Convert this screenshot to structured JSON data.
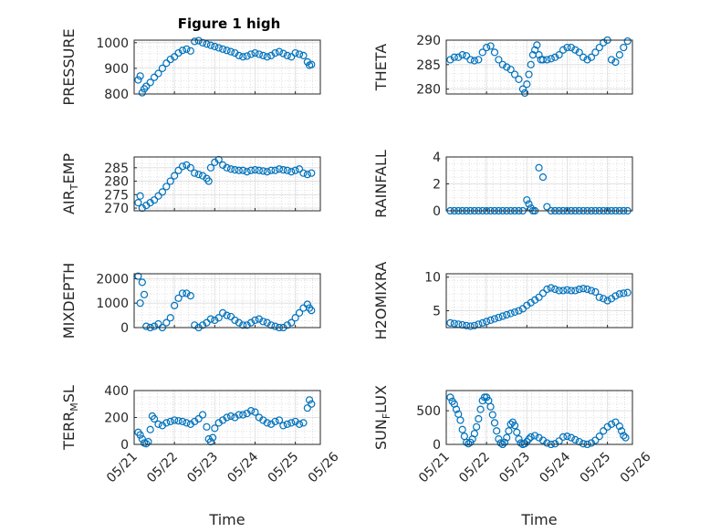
{
  "figure": {
    "title": "Figure 1 high"
  },
  "colors": {
    "marker": "#0072bd",
    "axis": "#262626",
    "grid": "#c8c8c8",
    "bg": "#ffffff"
  },
  "chart_data": [
    {
      "type": "scatter",
      "id": "pressure",
      "ylabel": "PRESSURE",
      "ylabel_sub": "",
      "xlim": [
        0,
        4.62
      ],
      "ylim": [
        800,
        1010
      ],
      "yticks": [
        800,
        900,
        1000
      ],
      "xticks": [
        0,
        1,
        2,
        3,
        4
      ],
      "xticklabels": [
        "05/21",
        "05/22",
        "05/23",
        "05/24",
        "05/25"
      ],
      "grid": true,
      "minor_grid": true,
      "x": [
        0.1,
        0.15,
        0.2,
        0.25,
        0.3,
        0.4,
        0.5,
        0.6,
        0.7,
        0.8,
        0.9,
        1.0,
        1.1,
        1.2,
        1.3,
        1.4,
        1.5,
        1.6,
        1.7,
        1.8,
        1.9,
        2.0,
        2.1,
        2.2,
        2.3,
        2.4,
        2.5,
        2.6,
        2.7,
        2.8,
        2.9,
        3.0,
        3.1,
        3.2,
        3.3,
        3.4,
        3.5,
        3.6,
        3.7,
        3.8,
        3.9,
        4.0,
        4.1,
        4.2,
        4.3,
        4.35,
        4.4
      ],
      "y": [
        855,
        870,
        805,
        820,
        830,
        845,
        865,
        880,
        900,
        920,
        935,
        945,
        960,
        970,
        975,
        968,
        1005,
        1008,
        1000,
        995,
        990,
        985,
        980,
        975,
        970,
        965,
        960,
        950,
        945,
        948,
        955,
        960,
        955,
        950,
        945,
        950,
        960,
        965,
        958,
        950,
        945,
        960,
        955,
        950,
        925,
        912,
        915
      ]
    },
    {
      "type": "scatter",
      "id": "theta",
      "ylabel": "THETA",
      "ylabel_sub": "",
      "xlim": [
        0,
        4.62
      ],
      "ylim": [
        279,
        290
      ],
      "yticks": [
        280,
        285,
        290
      ],
      "xticks": [
        0,
        1,
        2,
        3,
        4
      ],
      "xticklabels": [
        "05/21",
        "05/22",
        "05/23",
        "05/24",
        "05/25"
      ],
      "grid": true,
      "minor_grid": true,
      "x": [
        0.1,
        0.2,
        0.3,
        0.4,
        0.5,
        0.6,
        0.7,
        0.8,
        0.9,
        1.0,
        1.1,
        1.2,
        1.3,
        1.4,
        1.5,
        1.6,
        1.7,
        1.8,
        1.9,
        1.95,
        2.0,
        2.05,
        2.1,
        2.15,
        2.2,
        2.25,
        2.3,
        2.35,
        2.4,
        2.5,
        2.6,
        2.7,
        2.8,
        2.9,
        3.0,
        3.1,
        3.2,
        3.3,
        3.4,
        3.5,
        3.6,
        3.7,
        3.8,
        3.9,
        4.0,
        4.1,
        4.2,
        4.3,
        4.4,
        4.5
      ],
      "y": [
        286,
        286.5,
        286.5,
        287,
        286.8,
        286,
        285.8,
        286,
        287.5,
        288.5,
        288.8,
        287.5,
        286,
        285,
        284.5,
        284,
        283,
        282,
        280,
        279.2,
        281,
        283,
        285,
        287,
        288,
        289,
        287,
        286,
        286,
        286,
        286.2,
        286.5,
        287,
        288,
        288.5,
        288.5,
        288,
        287.5,
        286.5,
        286,
        286.5,
        287.5,
        288.5,
        289.5,
        290,
        286,
        285.5,
        287,
        288.5,
        289.8
      ]
    },
    {
      "type": "scatter",
      "id": "air_temp",
      "ylabel": "AIR",
      "ylabel_sub": "T",
      "ylabel_rest": "EMP",
      "xlim": [
        0,
        4.62
      ],
      "ylim": [
        269,
        289
      ],
      "yticks": [
        270,
        275,
        280,
        285
      ],
      "xticks": [
        0,
        1,
        2,
        3,
        4
      ],
      "xticklabels": [
        "05/21",
        "05/22",
        "05/23",
        "05/24",
        "05/25"
      ],
      "grid": true,
      "minor_grid": true,
      "x": [
        0.1,
        0.15,
        0.2,
        0.3,
        0.4,
        0.5,
        0.6,
        0.7,
        0.8,
        0.9,
        1.0,
        1.1,
        1.2,
        1.3,
        1.4,
        1.5,
        1.6,
        1.7,
        1.8,
        1.85,
        1.9,
        2.0,
        2.1,
        2.2,
        2.3,
        2.4,
        2.5,
        2.6,
        2.7,
        2.8,
        2.9,
        3.0,
        3.1,
        3.2,
        3.3,
        3.4,
        3.5,
        3.6,
        3.7,
        3.8,
        3.9,
        4.0,
        4.1,
        4.2,
        4.3,
        4.4
      ],
      "y": [
        272,
        274.5,
        270,
        271,
        272,
        273,
        274.5,
        276,
        278,
        280,
        282,
        284,
        285.5,
        286,
        285,
        283,
        282.5,
        282,
        281,
        280,
        285,
        287,
        288,
        286,
        285,
        284.5,
        284.2,
        284,
        284,
        283.5,
        284,
        284.2,
        284,
        283.8,
        283.5,
        284,
        284,
        284.5,
        284.2,
        284,
        283.5,
        284,
        284.5,
        283,
        282.5,
        283
      ]
    },
    {
      "type": "scatter",
      "id": "rainfall",
      "ylabel": "RAINFALL",
      "ylabel_sub": "",
      "xlim": [
        0,
        4.62
      ],
      "ylim": [
        0,
        4
      ],
      "yticks": [
        0,
        2,
        4
      ],
      "xticks": [
        0,
        1,
        2,
        3,
        4
      ],
      "xticklabels": [
        "05/21",
        "05/22",
        "05/23",
        "05/24",
        "05/25"
      ],
      "grid": true,
      "minor_grid": true,
      "x": [
        0.1,
        0.2,
        0.3,
        0.4,
        0.5,
        0.6,
        0.7,
        0.8,
        0.9,
        1.0,
        1.1,
        1.2,
        1.3,
        1.4,
        1.5,
        1.6,
        1.7,
        1.8,
        1.9,
        2.0,
        2.05,
        2.1,
        2.15,
        2.2,
        2.3,
        2.4,
        2.5,
        2.6,
        2.7,
        2.8,
        2.9,
        3.0,
        3.1,
        3.2,
        3.3,
        3.4,
        3.5,
        3.6,
        3.7,
        3.8,
        3.9,
        4.0,
        4.1,
        4.2,
        4.3,
        4.4,
        4.5
      ],
      "y": [
        0,
        0,
        0,
        0,
        0,
        0,
        0,
        0,
        0,
        0,
        0,
        0,
        0,
        0,
        0,
        0,
        0,
        0,
        0,
        0.8,
        0.5,
        0.2,
        0,
        0,
        3.2,
        2.5,
        0.3,
        0,
        0,
        0,
        0,
        0,
        0,
        0,
        0,
        0,
        0,
        0,
        0,
        0,
        0,
        0,
        0,
        0,
        0,
        0,
        0
      ]
    },
    {
      "type": "scatter",
      "id": "mixdepth",
      "ylabel": "MIXDEPTH",
      "ylabel_sub": "",
      "xlim": [
        0,
        4.62
      ],
      "ylim": [
        0,
        2200
      ],
      "yticks": [
        0,
        1000,
        2000
      ],
      "xticks": [
        0,
        1,
        2,
        3,
        4
      ],
      "xticklabels": [
        "05/21",
        "05/22",
        "05/23",
        "05/24",
        "05/25"
      ],
      "grid": true,
      "minor_grid": true,
      "x": [
        0.1,
        0.15,
        0.2,
        0.25,
        0.3,
        0.4,
        0.5,
        0.6,
        0.7,
        0.8,
        0.9,
        1.0,
        1.1,
        1.2,
        1.3,
        1.4,
        1.5,
        1.6,
        1.7,
        1.8,
        1.9,
        2.0,
        2.1,
        2.2,
        2.3,
        2.4,
        2.5,
        2.6,
        2.7,
        2.8,
        2.9,
        3.0,
        3.1,
        3.2,
        3.3,
        3.4,
        3.5,
        3.6,
        3.7,
        3.8,
        3.9,
        4.0,
        4.1,
        4.2,
        4.3,
        4.35,
        4.4
      ],
      "y": [
        2100,
        1000,
        1850,
        1350,
        50,
        0,
        50,
        150,
        0,
        200,
        400,
        900,
        1200,
        1400,
        1400,
        1300,
        100,
        0,
        100,
        200,
        350,
        300,
        400,
        600,
        500,
        450,
        300,
        200,
        100,
        100,
        200,
        300,
        350,
        250,
        200,
        100,
        50,
        0,
        0,
        100,
        200,
        400,
        600,
        800,
        950,
        800,
        700
      ]
    },
    {
      "type": "scatter",
      "id": "h2omixra",
      "ylabel": "H2OMIXRA",
      "ylabel_sub": "",
      "xlim": [
        0,
        4.62
      ],
      "ylim": [
        2.5,
        10.5
      ],
      "yticks": [
        5,
        10
      ],
      "xticks": [
        0,
        1,
        2,
        3,
        4
      ],
      "xticklabels": [
        "05/21",
        "05/22",
        "05/23",
        "05/24",
        "05/25"
      ],
      "grid": true,
      "minor_grid": true,
      "x": [
        0.1,
        0.2,
        0.3,
        0.4,
        0.5,
        0.6,
        0.7,
        0.8,
        0.9,
        1.0,
        1.1,
        1.2,
        1.3,
        1.4,
        1.5,
        1.6,
        1.7,
        1.8,
        1.9,
        2.0,
        2.1,
        2.2,
        2.3,
        2.4,
        2.5,
        2.6,
        2.7,
        2.8,
        2.9,
        3.0,
        3.1,
        3.2,
        3.3,
        3.4,
        3.5,
        3.6,
        3.7,
        3.8,
        3.9,
        4.0,
        4.1,
        4.2,
        4.3,
        4.4,
        4.5
      ],
      "y": [
        3.2,
        3.1,
        3.0,
        2.9,
        2.8,
        2.7,
        2.8,
        3.0,
        3.2,
        3.4,
        3.6,
        3.8,
        4.0,
        4.2,
        4.4,
        4.6,
        4.8,
        5.0,
        5.3,
        5.8,
        6.2,
        6.6,
        7.0,
        7.6,
        8.2,
        8.4,
        8.2,
        8.0,
        8.0,
        8.1,
        8.0,
        8.0,
        8.2,
        8.3,
        8.2,
        8.0,
        7.8,
        7.0,
        6.8,
        6.5,
        6.8,
        7.2,
        7.5,
        7.6,
        7.7
      ]
    },
    {
      "type": "scatter",
      "id": "terr_msl",
      "ylabel": "TERR",
      "ylabel_sub": "M",
      "ylabel_rest": "SL",
      "xlabel": "Time",
      "xlim": [
        0,
        4.62
      ],
      "ylim": [
        0,
        400
      ],
      "yticks": [
        0,
        200,
        400
      ],
      "xticks": [
        0,
        1,
        2,
        3,
        4,
        5
      ],
      "xticklabels": [
        "05/21",
        "05/22",
        "05/23",
        "05/24",
        "05/25",
        "05/26"
      ],
      "grid": true,
      "minor_grid": true,
      "x": [
        0.1,
        0.15,
        0.2,
        0.25,
        0.3,
        0.35,
        0.4,
        0.45,
        0.5,
        0.6,
        0.7,
        0.8,
        0.9,
        1.0,
        1.1,
        1.2,
        1.3,
        1.4,
        1.5,
        1.6,
        1.7,
        1.8,
        1.85,
        1.9,
        1.95,
        2.0,
        2.1,
        2.2,
        2.3,
        2.4,
        2.5,
        2.6,
        2.7,
        2.8,
        2.9,
        3.0,
        3.1,
        3.2,
        3.3,
        3.4,
        3.5,
        3.6,
        3.7,
        3.8,
        3.9,
        4.0,
        4.1,
        4.2,
        4.3,
        4.35,
        4.4
      ],
      "y": [
        90,
        70,
        40,
        10,
        5,
        20,
        110,
        210,
        190,
        150,
        140,
        160,
        170,
        180,
        175,
        170,
        160,
        150,
        170,
        190,
        220,
        130,
        40,
        20,
        50,
        120,
        160,
        180,
        200,
        210,
        200,
        220,
        220,
        230,
        250,
        240,
        200,
        180,
        160,
        150,
        170,
        180,
        140,
        150,
        160,
        170,
        150,
        160,
        270,
        330,
        300
      ]
    },
    {
      "type": "scatter",
      "id": "sun_flux",
      "ylabel": "SUN",
      "ylabel_sub": "F",
      "ylabel_rest": "LUX",
      "xlabel": "Time",
      "xlim": [
        0,
        4.62
      ],
      "ylim": [
        0,
        800
      ],
      "yticks": [
        0,
        500
      ],
      "xticks": [
        0,
        1,
        2,
        3,
        4,
        5
      ],
      "xticklabels": [
        "05/21",
        "05/22",
        "05/23",
        "05/24",
        "05/25",
        "05/26"
      ],
      "grid": true,
      "minor_grid": true,
      "x": [
        0.1,
        0.15,
        0.2,
        0.25,
        0.3,
        0.35,
        0.4,
        0.45,
        0.5,
        0.55,
        0.6,
        0.65,
        0.7,
        0.75,
        0.8,
        0.85,
        0.9,
        0.95,
        1.0,
        1.05,
        1.1,
        1.15,
        1.2,
        1.25,
        1.3,
        1.35,
        1.4,
        1.45,
        1.5,
        1.55,
        1.6,
        1.65,
        1.7,
        1.75,
        1.8,
        1.85,
        1.9,
        1.95,
        2.0,
        2.05,
        2.1,
        2.2,
        2.3,
        2.4,
        2.5,
        2.6,
        2.7,
        2.8,
        2.9,
        3.0,
        3.1,
        3.2,
        3.3,
        3.4,
        3.5,
        3.6,
        3.7,
        3.8,
        3.9,
        4.0,
        4.1,
        4.2,
        4.3,
        4.35,
        4.4,
        4.45
      ],
      "y": [
        700,
        640,
        600,
        520,
        450,
        360,
        220,
        120,
        30,
        10,
        30,
        80,
        160,
        260,
        380,
        520,
        650,
        700,
        700,
        650,
        560,
        440,
        320,
        200,
        80,
        20,
        0,
        30,
        100,
        200,
        300,
        330,
        280,
        180,
        80,
        20,
        0,
        10,
        40,
        80,
        110,
        130,
        100,
        60,
        20,
        0,
        10,
        50,
        110,
        120,
        100,
        70,
        40,
        10,
        0,
        20,
        60,
        120,
        200,
        260,
        300,
        330,
        270,
        200,
        130,
        100
      ]
    }
  ]
}
